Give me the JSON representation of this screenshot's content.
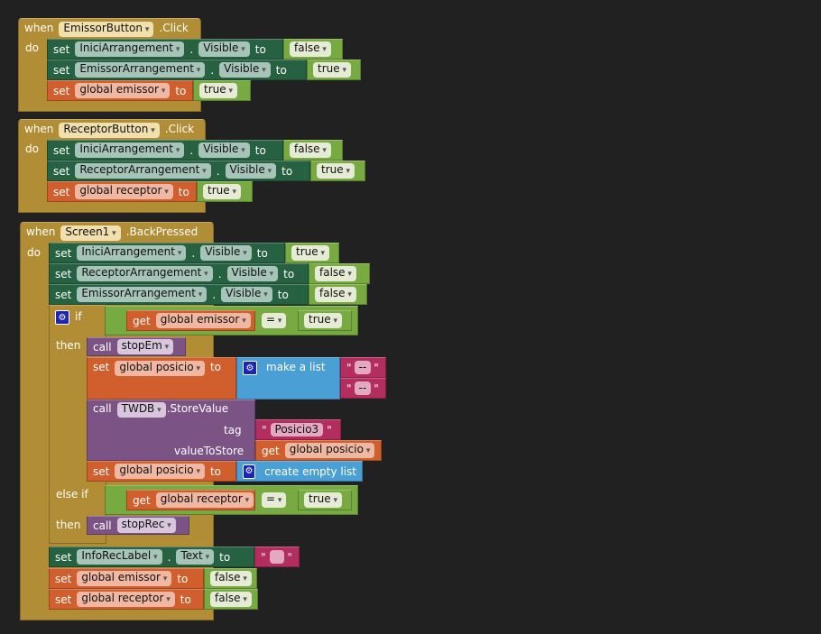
{
  "keywords": {
    "when": "when",
    "do": "do",
    "set": "set",
    "to": "to",
    "dot": ".",
    "get": "get",
    "call": "call",
    "if": "if",
    "then": "then",
    "else_if": "else if",
    "quote": "\"",
    "eq": "=",
    "make_list": "make a list",
    "create_empty": "create empty list",
    "tag": "tag",
    "value_to_store": "valueToStore",
    "store_value": ".StoreValue"
  },
  "event1": {
    "component": "EmissorButton",
    "event": ".Click",
    "s1": {
      "component": "IniciArrangement",
      "prop": "Visible",
      "value": "false"
    },
    "s2": {
      "component": "EmissorArrangement",
      "prop": "Visible",
      "value": "true"
    },
    "s3": {
      "var": "global emissor",
      "value": "true"
    }
  },
  "event2": {
    "component": "ReceptorButton",
    "event": ".Click",
    "s1": {
      "component": "IniciArrangement",
      "prop": "Visible",
      "value": "false"
    },
    "s2": {
      "component": "ReceptorArrangement",
      "prop": "Visible",
      "value": "true"
    },
    "s3": {
      "var": "global receptor",
      "value": "true"
    }
  },
  "event3": {
    "component": "Screen1",
    "event": ".BackPressed",
    "s1": {
      "component": "IniciArrangement",
      "prop": "Visible",
      "value": "true"
    },
    "s2": {
      "component": "ReceptorArrangement",
      "prop": "Visible",
      "value": "false"
    },
    "s3": {
      "component": "EmissorArrangement",
      "prop": "Visible",
      "value": "false"
    },
    "if": {
      "var": "global emissor",
      "value": "true",
      "proc": "stopEm",
      "set_var": "global posicio",
      "list_items": [
        "--",
        "--"
      ],
      "db": "TWDB",
      "tag": "Posicio3",
      "get_var": "global posicio",
      "set2_var": "global posicio"
    },
    "elseif": {
      "var": "global receptor",
      "value": "true",
      "proc": "stopRec"
    },
    "s5": {
      "component": "InfoRecLabel",
      "prop": "Text",
      "value": ""
    },
    "s6": {
      "var": "global emissor",
      "value": "false"
    },
    "s7": {
      "var": "global receptor",
      "value": "false"
    }
  },
  "colors": {
    "event": "#b18e35",
    "component": "#266141",
    "logic": "#77ab41",
    "variable": "#d05f2d",
    "procedure": "#7c5385",
    "list": "#4a9fd4",
    "text": "#b32d5e"
  }
}
